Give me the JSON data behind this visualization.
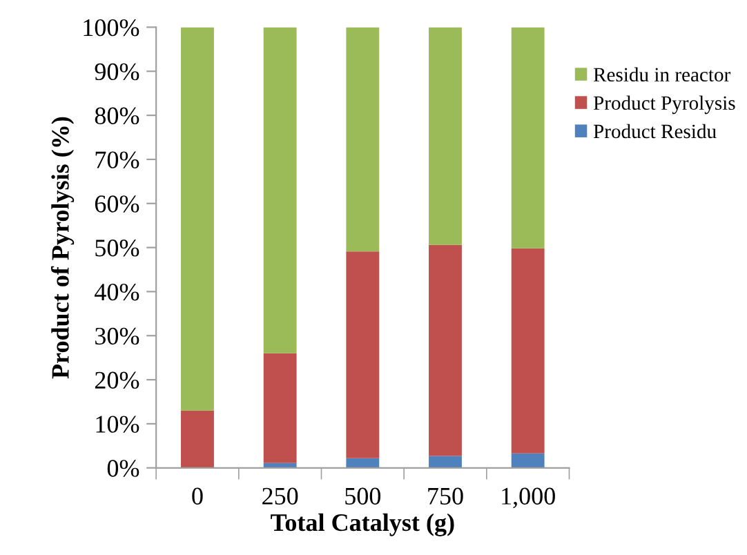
{
  "chart_data": {
    "type": "bar",
    "stacked": true,
    "xlabel": "Total Catalyst (g)",
    "ylabel": "Product of Pyrolysis (%)",
    "categories": [
      "0",
      "250",
      "500",
      "750",
      "1,000"
    ],
    "series": [
      {
        "name": "Product Residu",
        "color": "#4f81bd",
        "values": [
          0,
          1.1,
          2.2,
          2.7,
          3.3
        ]
      },
      {
        "name": "Product Pyrolysis",
        "color": "#c0504d",
        "values": [
          13.0,
          24.9,
          46.9,
          47.9,
          46.5
        ]
      },
      {
        "name": "Residu in reactor",
        "color": "#9bbb59",
        "values": [
          87.0,
          74.0,
          50.9,
          49.4,
          50.2
        ]
      }
    ],
    "ylim": [
      0,
      100
    ],
    "yticks": [
      {
        "value": 0,
        "label": "0%"
      },
      {
        "value": 10,
        "label": "10%"
      },
      {
        "value": 20,
        "label": "20%"
      },
      {
        "value": 30,
        "label": "30%"
      },
      {
        "value": 40,
        "label": "40%"
      },
      {
        "value": 50,
        "label": "50%"
      },
      {
        "value": 60,
        "label": "60%"
      },
      {
        "value": 70,
        "label": "70%"
      },
      {
        "value": 80,
        "label": "80%"
      },
      {
        "value": 90,
        "label": "90%"
      },
      {
        "value": 100,
        "label": "100%"
      }
    ],
    "grid": false,
    "legend": "right"
  }
}
